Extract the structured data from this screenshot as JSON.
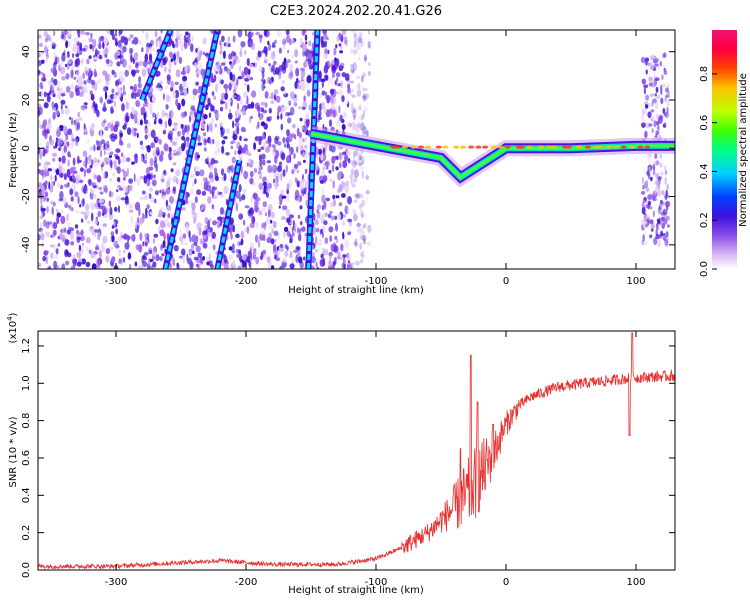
{
  "title": "C2E3.2024.202.20.41.G26",
  "chart_data": [
    {
      "type": "heatmap",
      "xlabel": "Height of straight line (km)",
      "ylabel": "Frequency (Hz)",
      "xlim": [
        -360,
        130
      ],
      "ylim": [
        -50,
        49
      ],
      "xticks": [
        -300,
        -200,
        -100,
        0,
        100
      ],
      "yticks": [
        -40,
        -20,
        0,
        20,
        40
      ],
      "colorbar": {
        "label": "Normalized spectral amplitude",
        "range": [
          0,
          0.98
        ],
        "ticks": [
          0.0,
          0.2,
          0.4,
          0.6,
          0.8
        ],
        "colors": [
          "#ffffff",
          "#d9b8f5",
          "#8a4fe8",
          "#4010e0",
          "#0040ff",
          "#00d0ff",
          "#00ff80",
          "#40ff00",
          "#c0ff00",
          "#ffc000",
          "#ff4000",
          "#ff0040",
          "#f01070"
        ]
      },
      "features": {
        "noise_region_x": [
          -360,
          -120
        ],
        "carrier_track": [
          {
            "x": -150,
            "y": 6
          },
          {
            "x": -130,
            "y": 4
          },
          {
            "x": -110,
            "y": 2
          },
          {
            "x": -90,
            "y": 0
          },
          {
            "x": -70,
            "y": -2
          },
          {
            "x": -50,
            "y": -4
          },
          {
            "x": -35,
            "y": -12
          },
          {
            "x": 0,
            "y": 0
          },
          {
            "x": 50,
            "y": 0
          },
          {
            "x": 100,
            "y": 1
          },
          {
            "x": 130,
            "y": 1
          }
        ],
        "diagonal_streaks": [
          {
            "x": [
              -280,
              -258
            ],
            "y": [
              20,
              49
            ]
          },
          {
            "x": [
              -262,
              -222
            ],
            "y": [
              -50,
              49
            ]
          },
          {
            "x": [
              -222,
              -205
            ],
            "y": [
              -50,
              -5
            ]
          },
          {
            "x": [
              -152,
              -145
            ],
            "y": [
              -50,
              49
            ]
          }
        ],
        "edge_band_x": [
          105,
          125
        ]
      }
    },
    {
      "type": "line",
      "xlabel": "Height of straight line (km)",
      "ylabel": "SNR (10 * v/v)",
      "multiplier": "(x10",
      "multiplier_exp": "4",
      "xlim": [
        -360,
        130
      ],
      "ylim": [
        0,
        1.28
      ],
      "xticks": [
        -300,
        -200,
        -100,
        0,
        100
      ],
      "yticks": [
        0.0,
        0.2,
        0.4,
        0.6,
        0.8,
        1.0,
        1.2
      ],
      "color": "#e83030",
      "trend": [
        {
          "x": -360,
          "y": 0.02
        },
        {
          "x": -300,
          "y": 0.02
        },
        {
          "x": -250,
          "y": 0.04
        },
        {
          "x": -220,
          "y": 0.05
        },
        {
          "x": -180,
          "y": 0.03
        },
        {
          "x": -130,
          "y": 0.03
        },
        {
          "x": -100,
          "y": 0.06
        },
        {
          "x": -80,
          "y": 0.12
        },
        {
          "x": -60,
          "y": 0.2
        },
        {
          "x": -45,
          "y": 0.3
        },
        {
          "x": -30,
          "y": 0.4
        },
        {
          "x": -20,
          "y": 0.5
        },
        {
          "x": -10,
          "y": 0.62
        },
        {
          "x": 0,
          "y": 0.78
        },
        {
          "x": 10,
          "y": 0.88
        },
        {
          "x": 20,
          "y": 0.93
        },
        {
          "x": 40,
          "y": 0.98
        },
        {
          "x": 60,
          "y": 1.0
        },
        {
          "x": 100,
          "y": 1.03
        },
        {
          "x": 130,
          "y": 1.04
        }
      ],
      "spikes": [
        {
          "x": -27,
          "y": 1.15
        },
        {
          "x": -22,
          "y": 0.9
        },
        {
          "x": -35,
          "y": 0.65
        },
        {
          "x": -10,
          "y": 0.78
        },
        {
          "x": 97,
          "y": 1.27
        },
        {
          "x": 95,
          "y": 0.72
        }
      ]
    }
  ]
}
